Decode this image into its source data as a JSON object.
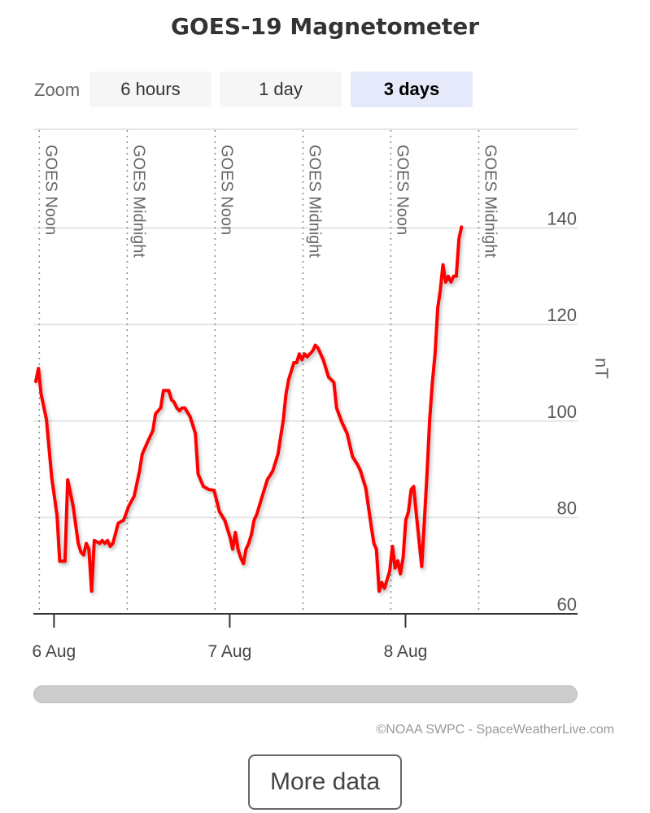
{
  "title": "GOES-19 Magnetometer",
  "zoom": {
    "label": "Zoom",
    "buttons": [
      "6 hours",
      "1 day",
      "3 days"
    ],
    "active": "3 days"
  },
  "credits": "©NOAA SWPC - SpaceWeatherLive.com",
  "more_button": "More data",
  "chart_data": {
    "type": "line",
    "title": "GOES-19 Magnetometer",
    "ylabel": "nT",
    "ylim": [
      60,
      140
    ],
    "yticks": [
      60,
      80,
      100,
      120,
      140
    ],
    "xlim": [
      "2025-08-05T21:31",
      "2025-08-08T23:10"
    ],
    "xticks": [
      {
        "label": "6 Aug",
        "x": "2025-08-06T00:00"
      },
      {
        "label": "7 Aug",
        "x": "2025-08-07T00:00"
      },
      {
        "label": "8 Aug",
        "x": "2025-08-08T00:00"
      }
    ],
    "plot_lines": [
      {
        "label": "GOES Noon",
        "x": "2025-08-05T22:00"
      },
      {
        "label": "GOES Midnight",
        "x": "2025-08-06T10:00"
      },
      {
        "label": "GOES Noon",
        "x": "2025-08-06T22:00"
      },
      {
        "label": "GOES Midnight",
        "x": "2025-08-07T10:00"
      },
      {
        "label": "GOES Noon",
        "x": "2025-08-07T22:00"
      },
      {
        "label": "GOES Midnight",
        "x": "2025-08-08T10:00"
      }
    ],
    "series": [
      {
        "color": "#ff0000",
        "points": [
          [
            "2025-08-05T21:31",
            108.2
          ],
          [
            "2025-08-05T21:53",
            110.9
          ],
          [
            "2025-08-05T22:14",
            105.6
          ],
          [
            "2025-08-05T22:58",
            100.3
          ],
          [
            "2025-08-05T23:41",
            88.4
          ],
          [
            "2025-08-06T00:25",
            80.4
          ],
          [
            "2025-08-06T00:47",
            70.9
          ],
          [
            "2025-08-06T01:30",
            70.9
          ],
          [
            "2025-08-06T01:52",
            87.8
          ],
          [
            "2025-08-06T02:36",
            82.4
          ],
          [
            "2025-08-06T03:19",
            74.6
          ],
          [
            "2025-08-06T03:41",
            72.8
          ],
          [
            "2025-08-06T04:03",
            72.2
          ],
          [
            "2025-08-06T04:25",
            74.6
          ],
          [
            "2025-08-06T04:46",
            73.4
          ],
          [
            "2025-08-06T05:08",
            64.7
          ],
          [
            "2025-08-06T05:30",
            75.2
          ],
          [
            "2025-08-06T06:14",
            74.6
          ],
          [
            "2025-08-06T06:35",
            75.2
          ],
          [
            "2025-08-06T06:57",
            74.6
          ],
          [
            "2025-08-06T07:19",
            75.2
          ],
          [
            "2025-08-06T07:41",
            74.0
          ],
          [
            "2025-08-06T08:03",
            74.6
          ],
          [
            "2025-08-06T08:46",
            78.8
          ],
          [
            "2025-08-06T09:30",
            79.4
          ],
          [
            "2025-08-06T10:14",
            82.4
          ],
          [
            "2025-08-06T10:57",
            84.4
          ],
          [
            "2025-08-06T11:41",
            89.6
          ],
          [
            "2025-08-06T12:03",
            93.1
          ],
          [
            "2025-08-06T12:46",
            95.6
          ],
          [
            "2025-08-06T13:30",
            98.0
          ],
          [
            "2025-08-06T13:52",
            101.5
          ],
          [
            "2025-08-06T14:35",
            102.7
          ],
          [
            "2025-08-06T14:57",
            106.3
          ],
          [
            "2025-08-06T15:41",
            106.3
          ],
          [
            "2025-08-06T16:03",
            104.4
          ],
          [
            "2025-08-06T16:24",
            103.9
          ],
          [
            "2025-08-06T16:46",
            102.7
          ],
          [
            "2025-08-06T17:08",
            102.1
          ],
          [
            "2025-08-06T17:30",
            102.7
          ],
          [
            "2025-08-06T17:52",
            102.7
          ],
          [
            "2025-08-06T18:35",
            100.9
          ],
          [
            "2025-08-06T19:19",
            97.4
          ],
          [
            "2025-08-06T19:41",
            89.0
          ],
          [
            "2025-08-06T20:24",
            86.4
          ],
          [
            "2025-08-06T21:08",
            85.8
          ],
          [
            "2025-08-06T21:52",
            85.6
          ],
          [
            "2025-08-06T22:35",
            81.2
          ],
          [
            "2025-08-06T23:19",
            79.4
          ],
          [
            "2025-08-06T23:41",
            77.6
          ],
          [
            "2025-08-07T00:03",
            75.8
          ],
          [
            "2025-08-07T00:24",
            73.4
          ],
          [
            "2025-08-07T00:46",
            76.9
          ],
          [
            "2025-08-07T01:08",
            73.4
          ],
          [
            "2025-08-07T01:30",
            71.6
          ],
          [
            "2025-08-07T01:52",
            70.4
          ],
          [
            "2025-08-07T02:13",
            73.4
          ],
          [
            "2025-08-07T02:35",
            74.6
          ],
          [
            "2025-08-07T02:57",
            76.4
          ],
          [
            "2025-08-07T03:19",
            79.4
          ],
          [
            "2025-08-07T03:41",
            80.6
          ],
          [
            "2025-08-07T04:24",
            84.2
          ],
          [
            "2025-08-07T05:08",
            87.8
          ],
          [
            "2025-08-07T05:52",
            89.6
          ],
          [
            "2025-08-07T06:35",
            93.1
          ],
          [
            "2025-08-07T07:19",
            100.3
          ],
          [
            "2025-08-07T07:41",
            105.6
          ],
          [
            "2025-08-07T08:03",
            108.6
          ],
          [
            "2025-08-07T08:46",
            112.1
          ],
          [
            "2025-08-07T09:08",
            112.1
          ],
          [
            "2025-08-07T09:30",
            113.9
          ],
          [
            "2025-08-07T09:52",
            112.7
          ],
          [
            "2025-08-07T10:13",
            113.9
          ],
          [
            "2025-08-07T10:35",
            113.3
          ],
          [
            "2025-08-07T11:19",
            114.5
          ],
          [
            "2025-08-07T11:41",
            115.7
          ],
          [
            "2025-08-07T12:03",
            115.1
          ],
          [
            "2025-08-07T12:46",
            112.7
          ],
          [
            "2025-08-07T13:30",
            109.1
          ],
          [
            "2025-08-07T14:13",
            108.0
          ],
          [
            "2025-08-07T14:35",
            102.7
          ],
          [
            "2025-08-07T15:19",
            99.7
          ],
          [
            "2025-08-07T16:02",
            97.4
          ],
          [
            "2025-08-07T16:46",
            92.6
          ],
          [
            "2025-08-07T17:30",
            90.8
          ],
          [
            "2025-08-07T17:52",
            89.6
          ],
          [
            "2025-08-07T18:35",
            86.0
          ],
          [
            "2025-08-07T19:19",
            78.2
          ],
          [
            "2025-08-07T19:41",
            74.6
          ],
          [
            "2025-08-07T20:02",
            73.4
          ],
          [
            "2025-08-07T20:24",
            64.7
          ],
          [
            "2025-08-07T20:46",
            66.5
          ],
          [
            "2025-08-07T21:08",
            65.3
          ],
          [
            "2025-08-07T21:29",
            67.1
          ],
          [
            "2025-08-07T21:51",
            68.9
          ],
          [
            "2025-08-07T22:13",
            74.0
          ],
          [
            "2025-08-07T22:35",
            69.5
          ],
          [
            "2025-08-07T22:57",
            71.0
          ],
          [
            "2025-08-07T23:18",
            68.3
          ],
          [
            "2025-08-07T23:40",
            71.6
          ],
          [
            "2025-08-08T00:02",
            79.4
          ],
          [
            "2025-08-08T00:24",
            81.2
          ],
          [
            "2025-08-08T00:46",
            85.8
          ],
          [
            "2025-08-08T01:07",
            86.4
          ],
          [
            "2025-08-08T01:29",
            80.6
          ],
          [
            "2025-08-08T01:51",
            75.2
          ],
          [
            "2025-08-08T02:13",
            69.8
          ],
          [
            "2025-08-08T02:35",
            79.4
          ],
          [
            "2025-08-08T02:56",
            89.0
          ],
          [
            "2025-08-08T03:18",
            100.3
          ],
          [
            "2025-08-08T03:40",
            108.0
          ],
          [
            "2025-08-08T04:02",
            113.9
          ],
          [
            "2025-08-08T04:24",
            123.5
          ],
          [
            "2025-08-08T04:45",
            127.0
          ],
          [
            "2025-08-08T05:07",
            132.4
          ],
          [
            "2025-08-08T05:29",
            128.8
          ],
          [
            "2025-08-08T05:51",
            130.0
          ],
          [
            "2025-08-08T06:13",
            128.8
          ],
          [
            "2025-08-08T06:34",
            130.0
          ],
          [
            "2025-08-08T06:56",
            130.0
          ],
          [
            "2025-08-08T07:18",
            137.8
          ],
          [
            "2025-08-08T07:39",
            140.2
          ]
        ]
      }
    ],
    "grid": true,
    "legend": false
  }
}
